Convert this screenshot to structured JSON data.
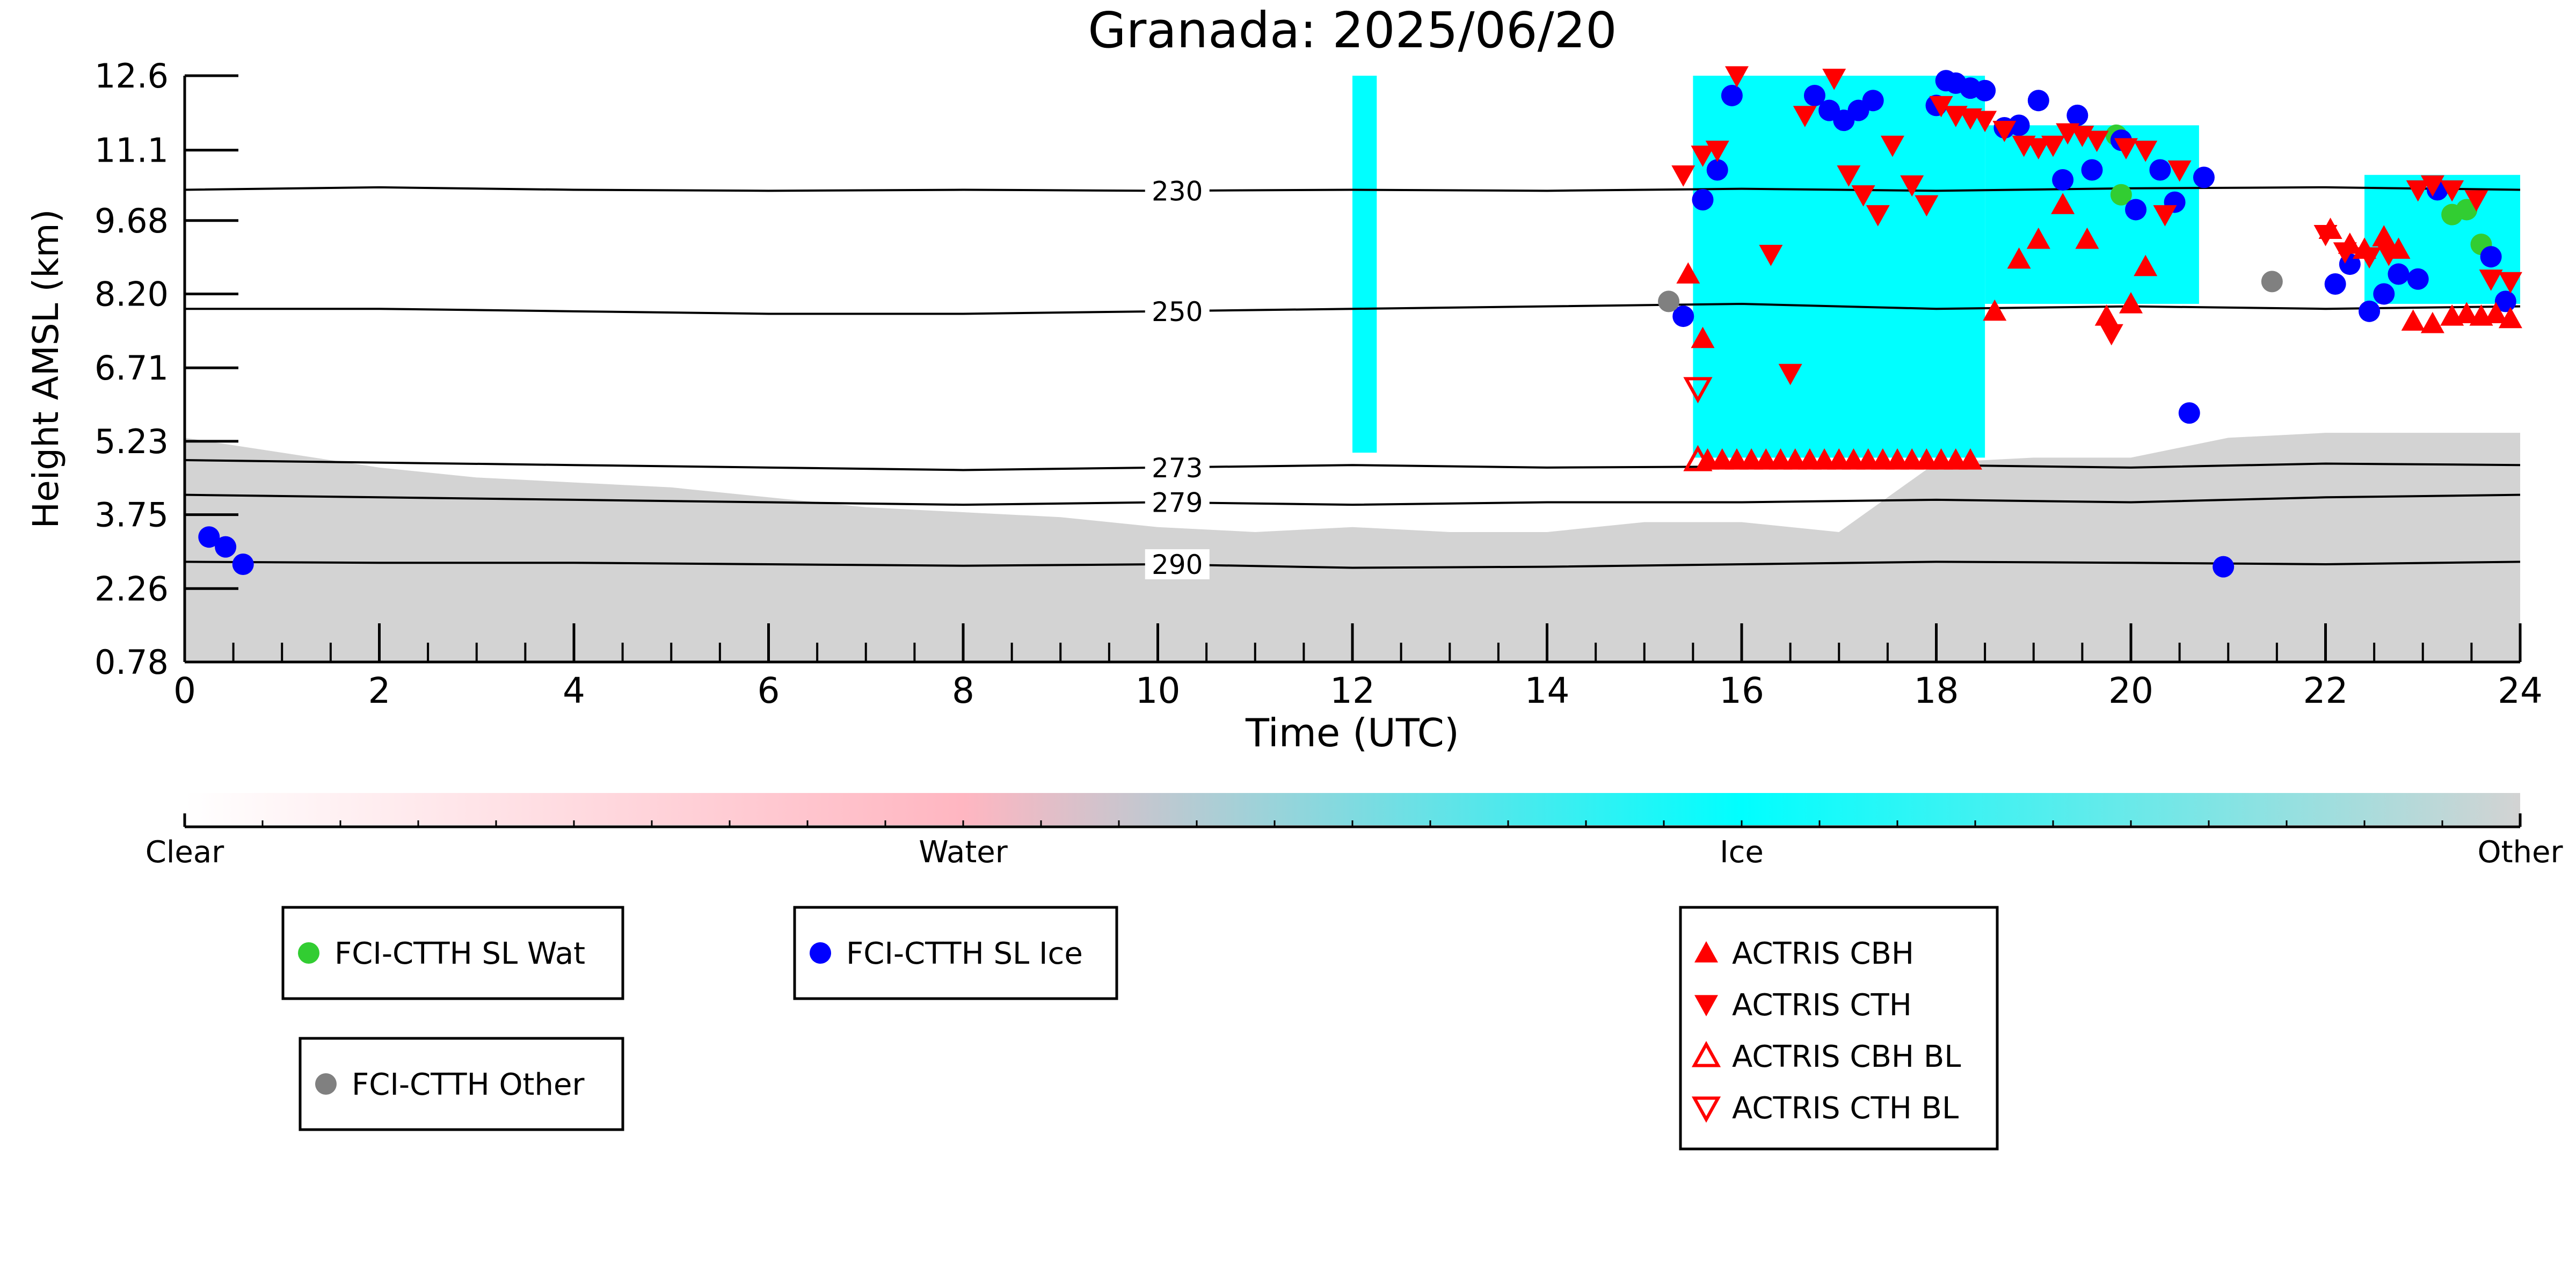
{
  "chart_data": {
    "type": "scatter",
    "title": "Granada: 2025/06/20",
    "xlabel": "Time (UTC)",
    "ylabel": "Height AMSL (km)",
    "xlim": [
      0,
      24
    ],
    "ylim": [
      0.78,
      12.6
    ],
    "x_ticks": [
      "0",
      "2",
      "4",
      "6",
      "8",
      "10",
      "12",
      "14",
      "16",
      "18",
      "20",
      "22",
      "24"
    ],
    "y_ticks": [
      "0.78",
      "2.26",
      "3.75",
      "5.23",
      "6.71",
      "8.20",
      "9.68",
      "11.1",
      "12.6"
    ],
    "y_tick_values": [
      0.78,
      2.26,
      3.75,
      5.23,
      6.71,
      8.2,
      9.68,
      11.1,
      12.6
    ],
    "colors": {
      "clear": "#ffffff",
      "water": "#ffb6c1",
      "ice": "#00ffff",
      "other": "#d3d3d3",
      "fci_wat": "#32cd32",
      "fci_ice": "#0000ff",
      "fci_other": "#808080",
      "actris": "#ff0000"
    },
    "background_fields": [
      {
        "class": "Other",
        "note_x_range": [
          0,
          24
        ],
        "top_km": [
          5.3,
          5.0,
          4.7,
          4.5,
          4.4,
          4.3,
          4.1,
          3.9,
          3.8,
          3.7,
          3.5,
          3.4,
          3.5,
          3.4,
          3.4,
          3.6,
          3.6,
          3.4,
          4.8,
          4.9,
          4.9,
          5.3,
          5.4,
          5.4,
          5.4
        ]
      },
      {
        "class": "Ice",
        "periods": [
          {
            "x": [
              12.0,
              12.25
            ],
            "y": [
              5.0,
              12.6
            ]
          },
          {
            "x": [
              15.5,
              18.5
            ],
            "y": [
              4.9,
              12.6
            ]
          },
          {
            "x": [
              18.5,
              20.7
            ],
            "y": [
              8.0,
              11.6
            ]
          },
          {
            "x": [
              22.4,
              24.0
            ],
            "y": [
              8.0,
              10.6
            ]
          }
        ]
      }
    ],
    "contours": [
      {
        "label": "230",
        "x": [
          0,
          2,
          4,
          6,
          8,
          10,
          12,
          14,
          16,
          18,
          20,
          22,
          24
        ],
        "y": [
          10.3,
          10.35,
          10.3,
          10.28,
          10.3,
          10.28,
          10.3,
          10.28,
          10.32,
          10.28,
          10.33,
          10.35,
          10.3
        ]
      },
      {
        "label": "250",
        "x": [
          0,
          2,
          4,
          6,
          8,
          10,
          12,
          14,
          16,
          18,
          20,
          22,
          24
        ],
        "y": [
          7.9,
          7.9,
          7.85,
          7.8,
          7.8,
          7.85,
          7.9,
          7.95,
          8.0,
          7.9,
          7.95,
          7.9,
          7.95
        ]
      },
      {
        "label": "273",
        "x": [
          0,
          2,
          4,
          6,
          8,
          10,
          12,
          14,
          16,
          18,
          20,
          22,
          24
        ],
        "y": [
          4.85,
          4.8,
          4.75,
          4.7,
          4.65,
          4.7,
          4.75,
          4.7,
          4.72,
          4.75,
          4.7,
          4.78,
          4.75
        ]
      },
      {
        "label": "279",
        "x": [
          0,
          2,
          4,
          6,
          8,
          10,
          12,
          14,
          16,
          18,
          20,
          22,
          24
        ],
        "y": [
          4.15,
          4.1,
          4.05,
          4.0,
          3.95,
          4.0,
          3.95,
          4.0,
          4.0,
          4.05,
          4.0,
          4.1,
          4.15
        ]
      },
      {
        "label": "290",
        "x": [
          0,
          2,
          4,
          6,
          8,
          10,
          12,
          14,
          16,
          18,
          20,
          22,
          24
        ],
        "y": [
          2.8,
          2.78,
          2.78,
          2.75,
          2.72,
          2.75,
          2.68,
          2.7,
          2.75,
          2.8,
          2.78,
          2.75,
          2.8
        ]
      }
    ],
    "series": [
      {
        "name": "FCI-CTTH SL Wat",
        "marker": "circle",
        "color": "#32cd32",
        "points": [
          [
            19.9,
            10.2
          ],
          [
            23.3,
            9.8
          ],
          [
            23.45,
            9.9
          ],
          [
            23.6,
            9.2
          ],
          [
            19.85,
            11.4
          ]
        ]
      },
      {
        "name": "FCI-CTTH SL Ice",
        "marker": "circle",
        "color": "#0000ff",
        "points": [
          [
            0.25,
            3.3
          ],
          [
            0.42,
            3.1
          ],
          [
            0.6,
            2.75
          ],
          [
            15.4,
            7.75
          ],
          [
            15.6,
            10.1
          ],
          [
            15.75,
            10.7
          ],
          [
            15.9,
            12.2
          ],
          [
            16.75,
            12.2
          ],
          [
            16.9,
            11.9
          ],
          [
            17.05,
            11.7
          ],
          [
            17.2,
            11.9
          ],
          [
            17.35,
            12.1
          ],
          [
            18.0,
            12.0
          ],
          [
            18.1,
            12.5
          ],
          [
            18.2,
            12.45
          ],
          [
            18.35,
            12.35
          ],
          [
            18.5,
            12.3
          ],
          [
            18.7,
            11.55
          ],
          [
            18.85,
            11.6
          ],
          [
            19.05,
            12.1
          ],
          [
            19.3,
            10.5
          ],
          [
            19.45,
            11.8
          ],
          [
            19.6,
            10.7
          ],
          [
            19.9,
            11.3
          ],
          [
            20.05,
            9.9
          ],
          [
            20.3,
            10.7
          ],
          [
            20.45,
            10.05
          ],
          [
            20.6,
            5.8
          ],
          [
            20.75,
            10.55
          ],
          [
            20.95,
            2.7
          ],
          [
            22.1,
            8.4
          ],
          [
            22.25,
            8.8
          ],
          [
            22.45,
            7.85
          ],
          [
            22.6,
            8.2
          ],
          [
            22.75,
            8.6
          ],
          [
            22.95,
            8.5
          ],
          [
            23.15,
            10.3
          ],
          [
            23.7,
            8.95
          ],
          [
            23.85,
            8.05
          ]
        ]
      },
      {
        "name": "FCI-CTTH Other",
        "marker": "circle",
        "color": "#808080",
        "points": [
          [
            15.25,
            8.05
          ],
          [
            21.45,
            8.45
          ]
        ]
      },
      {
        "name": "ACTRIS CBH",
        "marker": "triangle-up",
        "color": "#ff0000",
        "points": [
          [
            15.45,
            8.6
          ],
          [
            15.6,
            7.3
          ],
          [
            15.65,
            4.85
          ],
          [
            15.8,
            4.85
          ],
          [
            15.95,
            4.85
          ],
          [
            16.1,
            4.85
          ],
          [
            16.25,
            4.85
          ],
          [
            16.4,
            4.85
          ],
          [
            16.55,
            4.85
          ],
          [
            16.7,
            4.85
          ],
          [
            16.85,
            4.85
          ],
          [
            17.0,
            4.85
          ],
          [
            17.15,
            4.85
          ],
          [
            17.3,
            4.85
          ],
          [
            17.45,
            4.85
          ],
          [
            17.6,
            4.85
          ],
          [
            17.75,
            4.85
          ],
          [
            17.9,
            4.85
          ],
          [
            18.05,
            4.85
          ],
          [
            18.2,
            4.85
          ],
          [
            18.35,
            4.85
          ],
          [
            18.6,
            7.85
          ],
          [
            18.85,
            8.9
          ],
          [
            19.05,
            9.3
          ],
          [
            19.3,
            10.0
          ],
          [
            19.55,
            9.3
          ],
          [
            19.75,
            7.75
          ],
          [
            20.0,
            8.0
          ],
          [
            20.15,
            8.75
          ],
          [
            22.05,
            9.5
          ],
          [
            22.25,
            9.2
          ],
          [
            22.4,
            9.1
          ],
          [
            22.6,
            9.35
          ],
          [
            22.75,
            9.1
          ],
          [
            22.9,
            7.65
          ],
          [
            23.1,
            7.6
          ],
          [
            23.3,
            7.75
          ],
          [
            23.45,
            7.8
          ],
          [
            23.6,
            7.75
          ],
          [
            23.75,
            7.8
          ],
          [
            23.9,
            7.7
          ]
        ]
      },
      {
        "name": "ACTRIS CTH",
        "marker": "triangle-down",
        "color": "#ff0000",
        "points": [
          [
            15.4,
            10.6
          ],
          [
            15.6,
            11.0
          ],
          [
            15.75,
            11.1
          ],
          [
            15.95,
            12.6
          ],
          [
            16.3,
            9.0
          ],
          [
            16.5,
            6.6
          ],
          [
            16.65,
            11.8
          ],
          [
            16.95,
            12.55
          ],
          [
            17.1,
            10.6
          ],
          [
            17.25,
            10.2
          ],
          [
            17.4,
            9.8
          ],
          [
            17.55,
            11.2
          ],
          [
            17.75,
            10.4
          ],
          [
            17.9,
            10.0
          ],
          [
            18.05,
            12.0
          ],
          [
            18.2,
            11.8
          ],
          [
            18.35,
            11.75
          ],
          [
            18.5,
            11.7
          ],
          [
            18.7,
            11.5
          ],
          [
            18.9,
            11.2
          ],
          [
            19.05,
            11.15
          ],
          [
            19.2,
            11.2
          ],
          [
            19.35,
            11.45
          ],
          [
            19.5,
            11.4
          ],
          [
            19.65,
            11.3
          ],
          [
            19.8,
            7.4
          ],
          [
            19.95,
            11.15
          ],
          [
            20.15,
            11.1
          ],
          [
            20.35,
            9.8
          ],
          [
            20.5,
            10.7
          ],
          [
            22.0,
            9.4
          ],
          [
            22.2,
            9.05
          ],
          [
            22.45,
            8.95
          ],
          [
            22.65,
            9.0
          ],
          [
            22.95,
            10.3
          ],
          [
            23.1,
            10.4
          ],
          [
            23.3,
            10.3
          ],
          [
            23.55,
            10.1
          ],
          [
            23.7,
            8.5
          ],
          [
            23.9,
            8.45
          ]
        ]
      },
      {
        "name": "ACTRIS CBH BL",
        "marker": "triangle-up-open",
        "color": "#ff0000",
        "points": [
          [
            15.55,
            4.85
          ]
        ]
      },
      {
        "name": "ACTRIS CTH BL",
        "marker": "triangle-down-open",
        "color": "#ff0000",
        "points": [
          [
            15.55,
            6.3
          ]
        ]
      }
    ],
    "colorbar": {
      "labels": [
        "Clear",
        "Water",
        "Ice",
        "Other"
      ],
      "stops": [
        "#ffffff",
        "#ffb6c1",
        "#00ffff",
        "#d3d3d3"
      ]
    },
    "legend": {
      "boxes": [
        {
          "entries": [
            {
              "label": "FCI-CTTH SL Wat",
              "series": 0
            }
          ]
        },
        {
          "entries": [
            {
              "label": "FCI-CTTH SL Ice",
              "series": 1
            }
          ]
        },
        {
          "entries": [
            {
              "label": "FCI-CTTH Other",
              "series": 2
            }
          ]
        },
        {
          "entries": [
            {
              "label": "ACTRIS CBH",
              "series": 3
            },
            {
              "label": "ACTRIS CTH",
              "series": 4
            },
            {
              "label": "ACTRIS CBH BL",
              "series": 5
            },
            {
              "label": "ACTRIS CTH BL",
              "series": 6
            }
          ]
        }
      ]
    }
  }
}
